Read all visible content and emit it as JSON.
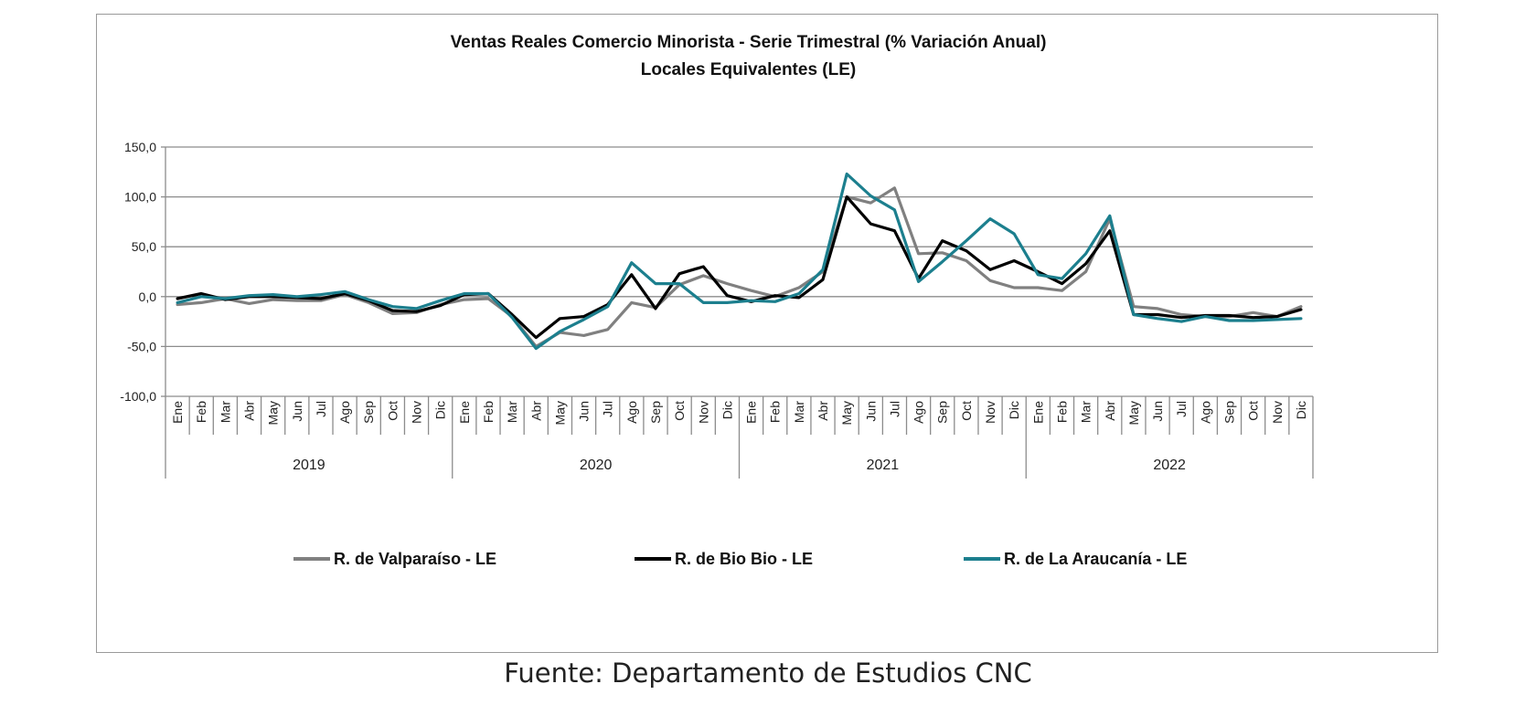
{
  "chart_data": {
    "type": "line",
    "title": "Ventas Reales Comercio Minorista - Serie Trimestral (% Variación Anual)",
    "subtitle": "Locales Equivalentes (LE)",
    "ylim": [
      -100,
      150
    ],
    "yticks": [
      -100,
      -50,
      0,
      50,
      100,
      150
    ],
    "ytick_labels": [
      "-100,0",
      "-50,0",
      "0,0",
      "50,0",
      "100,0",
      "150,0"
    ],
    "grid": true,
    "legend_position": "bottom",
    "years": [
      "2019",
      "2020",
      "2021",
      "2022"
    ],
    "months": [
      "Ene",
      "Feb",
      "Mar",
      "Abr",
      "May",
      "Jun",
      "Jul",
      "Ago",
      "Sep",
      "Oct",
      "Nov",
      "Dic"
    ],
    "series": [
      {
        "name": "R. de Valparaíso - LE",
        "color": "#808080",
        "values": [
          -8,
          -6,
          -2,
          -7,
          -3,
          -4,
          -4,
          2,
          -6,
          -17,
          -16,
          -8,
          -3,
          -2,
          -20,
          -50,
          -36,
          -39,
          -33,
          -6,
          -11,
          12,
          21,
          13,
          6,
          0,
          9,
          25,
          100,
          94,
          109,
          43,
          44,
          36,
          16,
          9,
          9,
          6,
          25,
          78,
          -10,
          -12,
          -18,
          -20,
          -20,
          -16,
          -20,
          -10
        ]
      },
      {
        "name": "R. de Bio Bio - LE",
        "color": "#000000",
        "values": [
          -2,
          3,
          -3,
          0,
          0,
          -1,
          -2,
          3,
          -4,
          -14,
          -15,
          -9,
          2,
          3,
          -18,
          -41,
          -22,
          -20,
          -8,
          22,
          -12,
          23,
          30,
          1,
          -5,
          1,
          -1,
          17,
          100,
          73,
          66,
          18,
          56,
          46,
          27,
          36,
          25,
          13,
          33,
          66,
          -18,
          -18,
          -21,
          -19,
          -19,
          -21,
          -20,
          -13
        ]
      },
      {
        "name": "R. de La Araucanía - LE",
        "color": "#1c7f8e",
        "values": [
          -6,
          0,
          -2,
          1,
          2,
          0,
          2,
          5,
          -3,
          -10,
          -12,
          -4,
          3,
          3,
          -21,
          -52,
          -35,
          -23,
          -10,
          34,
          13,
          13,
          -6,
          -6,
          -4,
          -5,
          3,
          27,
          123,
          101,
          87,
          15,
          35,
          56,
          78,
          63,
          22,
          18,
          43,
          81,
          -18,
          -22,
          -25,
          -20,
          -24,
          -24,
          -23,
          -22
        ]
      }
    ]
  },
  "source_note": "Fuente: Departamento de Estudios CNC"
}
